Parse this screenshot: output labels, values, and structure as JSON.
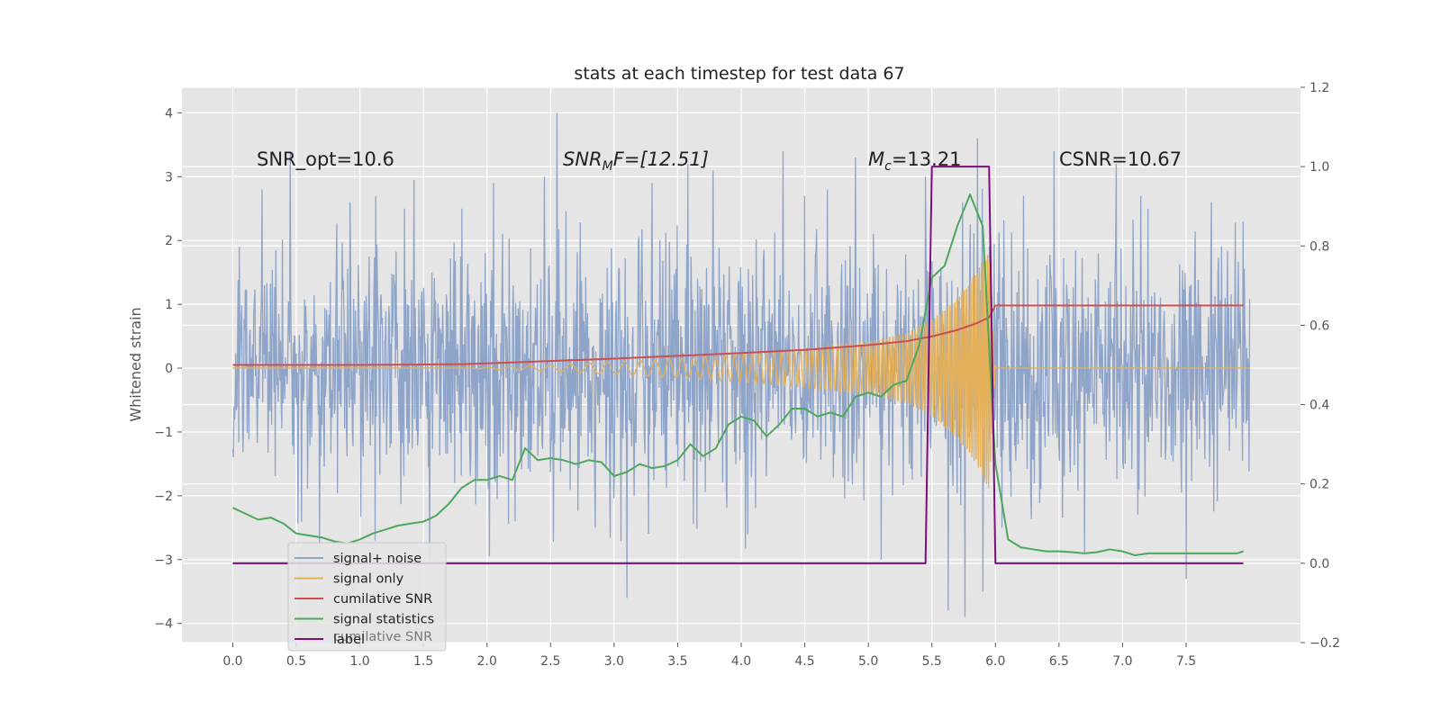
{
  "chart_data": {
    "type": "line",
    "title": "stats at each timestep for test data 67",
    "ylabel": "Whitened strain",
    "xlabel": "",
    "xlim": [
      -0.4,
      8.4
    ],
    "ylim": [
      -4.3,
      4.4
    ],
    "y2lim": [
      -0.2,
      1.2
    ],
    "grid": true,
    "legend_placement": "lower-left",
    "x_ticks": [
      "0.0",
      "0.5",
      "1.0",
      "1.5",
      "2.0",
      "2.5",
      "3.0",
      "3.5",
      "4.0",
      "4.5",
      "5.0",
      "5.5",
      "6.0",
      "6.5",
      "7.0",
      "7.5"
    ],
    "y_ticks": [
      "−4",
      "−3",
      "−2",
      "−1",
      "0",
      "1",
      "2",
      "3",
      "4"
    ],
    "y2_ticks": [
      "−0.2",
      "0.0",
      "0.2",
      "0.4",
      "0.6",
      "0.8",
      "1.0",
      "1.2"
    ],
    "annotations": {
      "snr_opt": "SNR_opt=10.6",
      "snr_mf_main": "SNR",
      "snr_mf_sub": "M",
      "snr_mf_rest": "F=[12.51]",
      "mc_main": "M",
      "mc_sub": "c",
      "mc_rest": "=13.21",
      "csnr": "CSNR=10.67"
    },
    "legend_ghost_label": "cumilative SNR",
    "series": [
      {
        "name": "signal+ noise",
        "axis": "left",
        "color": "#8fa4c9",
        "style": "noise",
        "x_range": [
          0.0,
          8.0
        ],
        "sigma": 1.0,
        "peaks": [
          [
            0.05,
            1.9
          ],
          [
            0.23,
            2.8
          ],
          [
            0.45,
            3.4
          ],
          [
            0.68,
            -2.8
          ],
          [
            0.92,
            2.6
          ],
          [
            1.12,
            -2.7
          ],
          [
            1.35,
            2.5
          ],
          [
            1.55,
            -3.0
          ],
          [
            1.8,
            2.5
          ],
          [
            2.05,
            2.9
          ],
          [
            2.22,
            -2.4
          ],
          [
            2.45,
            3.0
          ],
          [
            2.55,
            4.0
          ],
          [
            2.85,
            -2.5
          ],
          [
            3.1,
            -3.6
          ],
          [
            3.3,
            2.9
          ],
          [
            3.58,
            3.2
          ],
          [
            3.78,
            3.1
          ],
          [
            4.05,
            -2.6
          ],
          [
            4.33,
            3.4
          ],
          [
            4.5,
            2.7
          ],
          [
            4.68,
            2.8
          ],
          [
            4.9,
            3.3
          ],
          [
            5.1,
            -3.0
          ],
          [
            5.45,
            3.0
          ],
          [
            5.63,
            -3.8
          ],
          [
            5.76,
            -3.9
          ],
          [
            5.86,
            3.6
          ],
          [
            5.9,
            -3.5
          ],
          [
            6.05,
            -2.5
          ],
          [
            6.22,
            2.7
          ],
          [
            6.46,
            3.4
          ],
          [
            6.7,
            -2.9
          ],
          [
            6.95,
            3.2
          ],
          [
            7.2,
            2.5
          ],
          [
            7.5,
            -3.3
          ],
          [
            7.7,
            2.6
          ],
          [
            7.95,
            2.3
          ]
        ]
      },
      {
        "name": "signal only",
        "axis": "left",
        "color": "#e4b05a",
        "style": "chirp",
        "x_range": [
          1.8,
          6.0
        ],
        "envelope": [
          [
            1.8,
            0.0
          ],
          [
            2.5,
            0.05
          ],
          [
            3.0,
            0.1
          ],
          [
            3.5,
            0.15
          ],
          [
            4.0,
            0.22
          ],
          [
            4.5,
            0.3
          ],
          [
            5.0,
            0.42
          ],
          [
            5.3,
            0.55
          ],
          [
            5.5,
            0.75
          ],
          [
            5.7,
            1.1
          ],
          [
            5.85,
            1.5
          ],
          [
            5.95,
            1.9
          ],
          [
            6.0,
            0.0
          ]
        ]
      },
      {
        "name": "cumilative SNR",
        "axis": "right",
        "color": "#cc4e4e",
        "x": [
          0.0,
          0.5,
          1.0,
          1.5,
          1.8,
          2.0,
          2.5,
          3.0,
          3.5,
          4.0,
          4.5,
          5.0,
          5.3,
          5.5,
          5.7,
          5.85,
          5.95,
          6.0,
          6.5,
          7.0,
          7.5,
          7.95
        ],
        "y": [
          0.5,
          0.5,
          0.5,
          0.501,
          0.502,
          0.504,
          0.51,
          0.516,
          0.523,
          0.53,
          0.538,
          0.55,
          0.56,
          0.572,
          0.588,
          0.605,
          0.62,
          0.65,
          0.65,
          0.65,
          0.65,
          0.65
        ]
      },
      {
        "name": "signal statistics",
        "axis": "right",
        "color": "#4ea75e",
        "x": [
          0.0,
          0.1,
          0.2,
          0.3,
          0.4,
          0.5,
          0.6,
          0.7,
          0.8,
          0.9,
          1.0,
          1.1,
          1.2,
          1.3,
          1.4,
          1.5,
          1.6,
          1.7,
          1.8,
          1.9,
          2.0,
          2.1,
          2.2,
          2.3,
          2.4,
          2.5,
          2.6,
          2.7,
          2.8,
          2.9,
          3.0,
          3.1,
          3.2,
          3.3,
          3.4,
          3.5,
          3.6,
          3.7,
          3.8,
          3.9,
          4.0,
          4.1,
          4.2,
          4.3,
          4.4,
          4.5,
          4.6,
          4.7,
          4.8,
          4.9,
          5.0,
          5.1,
          5.2,
          5.3,
          5.4,
          5.5,
          5.6,
          5.7,
          5.8,
          5.9,
          6.0,
          6.1,
          6.2,
          6.3,
          6.4,
          6.5,
          6.6,
          6.7,
          6.8,
          6.9,
          7.0,
          7.1,
          7.2,
          7.3,
          7.4,
          7.5,
          7.6,
          7.7,
          7.8,
          7.9,
          7.95
        ],
        "y": [
          0.14,
          0.125,
          0.11,
          0.115,
          0.1,
          0.075,
          0.07,
          0.065,
          0.055,
          0.05,
          0.06,
          0.075,
          0.085,
          0.095,
          0.1,
          0.105,
          0.12,
          0.15,
          0.19,
          0.21,
          0.21,
          0.22,
          0.21,
          0.29,
          0.26,
          0.265,
          0.26,
          0.25,
          0.26,
          0.255,
          0.22,
          0.23,
          0.25,
          0.24,
          0.245,
          0.26,
          0.3,
          0.27,
          0.29,
          0.35,
          0.37,
          0.36,
          0.32,
          0.35,
          0.39,
          0.39,
          0.37,
          0.38,
          0.37,
          0.42,
          0.43,
          0.42,
          0.45,
          0.46,
          0.55,
          0.72,
          0.75,
          0.85,
          0.93,
          0.85,
          0.25,
          0.06,
          0.04,
          0.035,
          0.03,
          0.03,
          0.028,
          0.025,
          0.028,
          0.035,
          0.03,
          0.02,
          0.025,
          0.025,
          0.025,
          0.025,
          0.025,
          0.025,
          0.025,
          0.025,
          0.03
        ]
      },
      {
        "name": "label",
        "axis": "right",
        "color": "#7b0d7e",
        "x": [
          0.0,
          5.45,
          5.5,
          5.95,
          6.0,
          7.95
        ],
        "y": [
          0.0,
          0.0,
          1.0,
          1.0,
          0.0,
          0.0
        ]
      }
    ]
  }
}
